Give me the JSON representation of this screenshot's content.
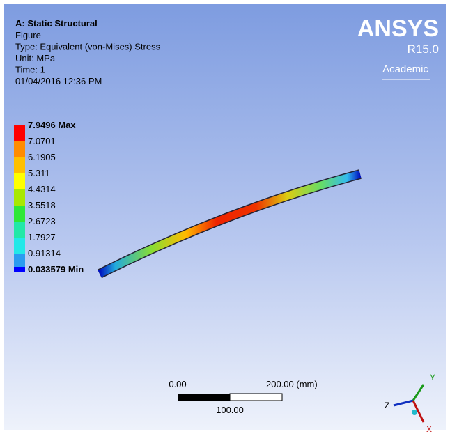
{
  "header": {
    "title": "A: Static Structural",
    "lines": [
      "Figure",
      "Type: Equivalent (von-Mises) Stress",
      "Unit: MPa",
      "Time: 1",
      "01/04/2016 12:36 PM"
    ]
  },
  "logo": {
    "name": "ANSYS",
    "version": "R15.0",
    "edition": "Academic"
  },
  "legend": {
    "labels": [
      "7.9496 Max",
      "7.0701",
      "6.1905",
      "5.311",
      "4.4314",
      "3.5518",
      "2.6723",
      "1.7927",
      "0.91314",
      "0.033579 Min"
    ]
  },
  "scale_bar": {
    "start": "0.00",
    "end": "200.00 (mm)",
    "middle": "100.00"
  },
  "triad": {
    "x": "X",
    "y": "Y",
    "z": "Z"
  }
}
